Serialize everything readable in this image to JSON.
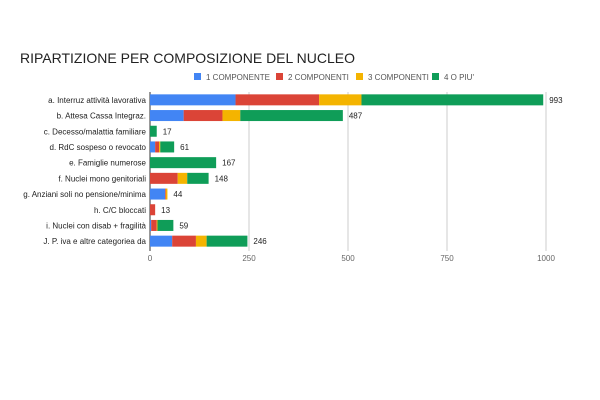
{
  "chart_data": {
    "type": "bar",
    "orientation": "horizontal",
    "stacked": true,
    "title": "RIPARTIZIONE PER COMPOSIZIONE DEL NUCLEO",
    "legend_position": "top",
    "categories": [
      "a. Interruz attività lavorativa",
      "b. Attesa Cassa Integraz.",
      "c. Decesso/malattia familiare",
      "d. RdC sospeso o revocato",
      "e. Famiglie numerose",
      "f. Nuclei mono genitoriali",
      "g. Anziani soli no pensione/minima",
      "h. C/C bloccati",
      "i. Nuclei con disab + fragilità",
      "J. P. iva e altre categoriea da"
    ],
    "series": [
      {
        "name": "1 COMPONENTE",
        "color": "#4285f4",
        "values": [
          216,
          85,
          0,
          13,
          0,
          0,
          38,
          0,
          3,
          56
        ]
      },
      {
        "name": "2 COMPONENTI",
        "color": "#db4437",
        "values": [
          211,
          98,
          0,
          10,
          0,
          70,
          2,
          13,
          14,
          60
        ]
      },
      {
        "name": "3 COMPONENTI",
        "color": "#f4b400",
        "values": [
          107,
          45,
          0,
          3,
          0,
          24,
          4,
          0,
          2,
          27
        ]
      },
      {
        "name": "4 O PIU'",
        "color": "#0f9d58",
        "values": [
          459,
          259,
          17,
          35,
          167,
          54,
          0,
          0,
          40,
          103
        ]
      }
    ],
    "totals": [
      993,
      487,
      17,
      61,
      167,
      148,
      44,
      13,
      59,
      246
    ],
    "xlim": [
      0,
      1000
    ],
    "xticks": [
      0,
      250,
      500,
      750,
      1000
    ],
    "grid": true
  }
}
